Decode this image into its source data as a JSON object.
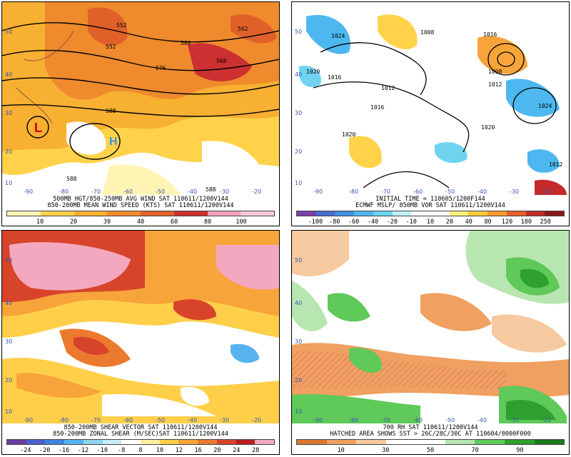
{
  "panels": [
    {
      "id": "p1",
      "caption1": "500MB HGT/850-250MB AVG WIND SAT 110611/1200V144",
      "caption2": "850-200MB MEAN WIND SPEED (KTS) SAT 110611/1200V144",
      "colorbar_ticks": [
        "10",
        "20",
        "30",
        "40",
        "60",
        "80",
        "100"
      ],
      "colorbar_colors": [
        "#fff4b3",
        "#ffd24a",
        "#f7b031",
        "#ef8a2d",
        "#e0602a",
        "#cc3030",
        "#f2a0b8",
        "#f7c9d6"
      ],
      "contour_labels": [
        "552",
        "552",
        "560",
        "562",
        "568",
        "576",
        "588",
        "588",
        "588"
      ],
      "symbol_low": "L",
      "symbol_high": "H",
      "lat_labels": [
        "50",
        "40",
        "30",
        "20",
        "10"
      ],
      "lon_labels": [
        "-90",
        "-80",
        "-70",
        "-60",
        "-50",
        "-40",
        "-30",
        "-20"
      ]
    },
    {
      "id": "p2",
      "caption1": "INITIAL TIME = 110605/1200F144",
      "caption2": "ECMWF MSLP/ 850MB VOR SAT 110611/1200V144",
      "colorbar_ticks": [
        "-100",
        "-80",
        "-60",
        "-40",
        "-20",
        "-10",
        "10",
        "20",
        "40",
        "80",
        "120",
        "180",
        "250"
      ],
      "colorbar_colors": [
        "#7b3fa8",
        "#4b6bd1",
        "#3f8fe0",
        "#4db8ef",
        "#6fd3f0",
        "#bfeef7",
        "#ffffff",
        "#ffffff",
        "#fff07a",
        "#ffc93b",
        "#f59a2f",
        "#e35f28",
        "#c32a2a",
        "#8b1818"
      ],
      "contour_labels": [
        "1024",
        "1008",
        "1016",
        "1020",
        "1016",
        "1008",
        "1012",
        "1012",
        "1016",
        "1024",
        "1020",
        "1012",
        "1020"
      ],
      "lat_labels": [
        "50",
        "40",
        "30",
        "20",
        "10"
      ],
      "lon_labels": [
        "-90",
        "-80",
        "-70",
        "-60",
        "-50",
        "-40",
        "-30",
        "-20"
      ]
    },
    {
      "id": "p3",
      "caption1": "850-200MB SHEAR VECTOR SAT 110611/1200V144",
      "caption2": "850-200MB ZONAL SHEAR (M/SEC)SAT 110611/1200V144",
      "colorbar_ticks": [
        "-24",
        "-20",
        "-16",
        "-12",
        "-10",
        "-8",
        "8",
        "10",
        "12",
        "16",
        "20",
        "24",
        "28"
      ],
      "colorbar_colors": [
        "#6a3fa0",
        "#4e5fd0",
        "#3d86e0",
        "#56b3ef",
        "#8fd4f2",
        "#c8ecf8",
        "#ffffff",
        "#fff0a0",
        "#ffcf4a",
        "#f7a43a",
        "#ec7a2e",
        "#d8442a",
        "#b82020",
        "#f4a8c0"
      ],
      "lat_labels": [
        "50",
        "40",
        "30",
        "20",
        "10"
      ],
      "lon_labels": [
        "-90",
        "-80",
        "-70",
        "-60",
        "-50",
        "-40",
        "-30",
        "-20"
      ]
    },
    {
      "id": "p4",
      "caption1": "700 RH SAT 110611/1200V144",
      "caption2": "HATCHED AREA SHOWS SST > 26C/28C/30C AT 110604/0000F000",
      "colorbar_ticks": [
        "10",
        "30",
        "50",
        "70",
        "90"
      ],
      "colorbar_colors": [
        "#d9782f",
        "#f0a060",
        "#f7c9a0",
        "#ffffff",
        "#ffffff",
        "#b8e6b0",
        "#5fc95a",
        "#2ea02e",
        "#1a7a1a"
      ],
      "lat_labels": [
        "50",
        "40",
        "30",
        "20",
        "10"
      ],
      "lon_labels": [
        "-90",
        "-80",
        "-70",
        "-60",
        "-50",
        "-40",
        "-30",
        "-20"
      ]
    }
  ]
}
